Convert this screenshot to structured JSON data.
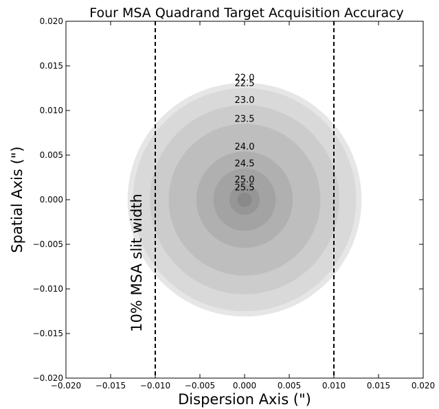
{
  "chart_data": {
    "type": "concentric",
    "title": "Four MSA Quadrand Target Acquisition Accuracy",
    "x_label": "Dispersion Axis (\")",
    "y_label": "Spatial Axis (\")",
    "annotation": "10% MSA slit width",
    "categories": [
      "22.0",
      "22.5",
      "23.0",
      "23.5",
      "24.0",
      "24.5",
      "25.0",
      "25.5"
    ],
    "values": [
      0.0131,
      0.0125,
      0.0106,
      0.0085,
      0.0054,
      0.0035,
      0.0017,
      0.0008
    ],
    "colors": [
      "#e6e6e6",
      "#d9d9d9",
      "#cccccc",
      "#bebebe",
      "#b0b0b0",
      "#a3a3a3",
      "#969696",
      "#898989"
    ],
    "slit_lines": [
      -0.01,
      0.01
    ],
    "xlim": [
      -0.02,
      0.02
    ],
    "ylim": [
      -0.02,
      0.02
    ],
    "xticks": [
      {
        "value": -0.02,
        "label": "−0.020"
      },
      {
        "value": -0.015,
        "label": "−0.015"
      },
      {
        "value": -0.01,
        "label": "−0.010"
      },
      {
        "value": -0.005,
        "label": "−0.005"
      },
      {
        "value": 0,
        "label": "0.000"
      },
      {
        "value": 0.005,
        "label": "0.005"
      },
      {
        "value": 0.01,
        "label": "0.010"
      },
      {
        "value": 0.015,
        "label": "0.015"
      },
      {
        "value": 0.02,
        "label": "0.020"
      }
    ],
    "yticks": [
      {
        "value": -0.02,
        "label": "−0.020"
      },
      {
        "value": -0.015,
        "label": "−0.015"
      },
      {
        "value": -0.01,
        "label": "−0.010"
      },
      {
        "value": -0.005,
        "label": "−0.005"
      },
      {
        "value": 0,
        "label": "0.000"
      },
      {
        "value": 0.005,
        "label": "0.005"
      },
      {
        "value": 0.01,
        "label": "0.010"
      },
      {
        "value": 0.015,
        "label": "0.015"
      },
      {
        "value": 0.02,
        "label": "0.020"
      }
    ]
  }
}
